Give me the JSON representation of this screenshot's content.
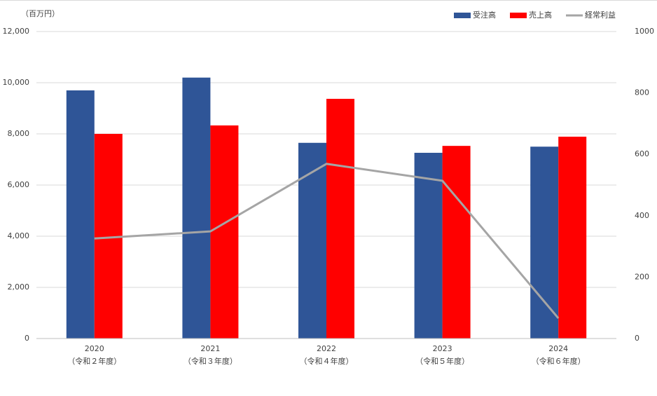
{
  "chart_data": {
    "type": "bar-line",
    "unit_label": "（百万円）",
    "categories": [
      "2020",
      "2021",
      "2022",
      "2023",
      "2024"
    ],
    "category_sublabels": [
      "（令和２年度）",
      "（令和３年度）",
      "（令和４年度）",
      "（令和５年度）",
      "（令和６年度）"
    ],
    "series": [
      {
        "name": "受注高",
        "color": "#2f5597",
        "kind": "bar",
        "values": [
          9700,
          10200,
          7650,
          7260,
          7500
        ]
      },
      {
        "name": "売上高",
        "color": "#ff0000",
        "kind": "bar",
        "values": [
          8000,
          8330,
          9370,
          7530,
          7890
        ]
      },
      {
        "name": "経常利益",
        "color": "#a5a5a5",
        "kind": "line",
        "axis": "y2",
        "values": [
          326,
          349,
          569,
          514,
          66
        ]
      }
    ],
    "ylim": [
      0,
      12000
    ],
    "yticks": [
      0,
      {
        "value": 2000,
        "label": "2,000"
      },
      {
        "value": 4000,
        "label": "4,000"
      },
      {
        "value": 6000,
        "label": "6,000"
      },
      {
        "value": 8000,
        "label": "8,000"
      },
      {
        "value": 10000,
        "label": "10,000"
      },
      {
        "value": 12000,
        "label": "12,000"
      }
    ],
    "y2lim": [
      0,
      1000
    ],
    "y2ticks": [
      0,
      200,
      400,
      600,
      800,
      1000
    ],
    "grid": true,
    "legend": "top-right"
  }
}
